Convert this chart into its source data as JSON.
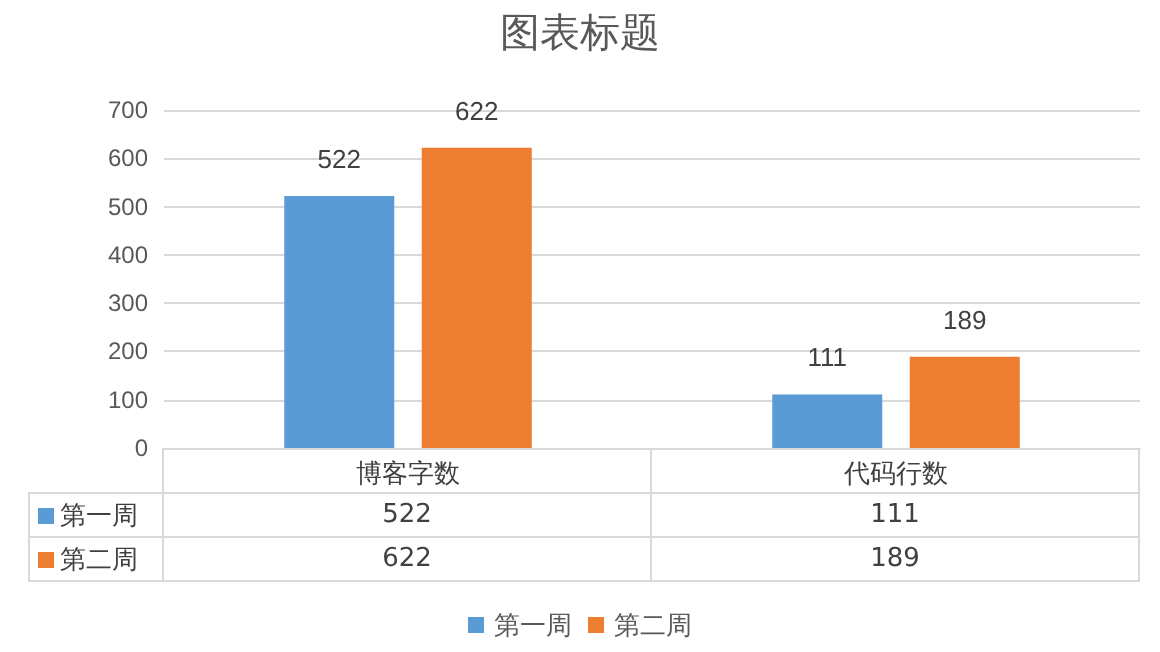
{
  "chart_data": {
    "type": "bar",
    "title": "图表标题",
    "categories": [
      "博客字数",
      "代码行数"
    ],
    "series": [
      {
        "name": "第一周",
        "color": "#5b9bd5",
        "values": [
          522,
          111
        ]
      },
      {
        "name": "第二周",
        "color": "#ed7d31",
        "values": [
          622,
          189
        ]
      }
    ],
    "ylim": [
      0,
      700
    ],
    "yticks": [
      0,
      100,
      200,
      300,
      400,
      500,
      600,
      700
    ],
    "grid": "y",
    "legend": "bottom",
    "data_labels": true,
    "annotations": [
      "522",
      "111",
      "622",
      "189"
    ]
  }
}
